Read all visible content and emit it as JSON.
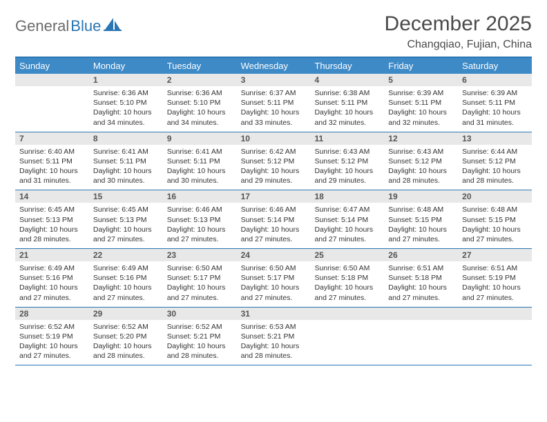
{
  "brand": {
    "part1": "General",
    "part2": "Blue"
  },
  "title": "December 2025",
  "location": "Changqiao, Fujian, China",
  "colors": {
    "header_bg": "#3d8ac7",
    "border": "#2a75b3",
    "daynum_bg": "#e8e8e8",
    "text": "#333333",
    "brand_gray": "#6a6a6a",
    "brand_blue": "#2a75b3"
  },
  "dow": [
    "Sunday",
    "Monday",
    "Tuesday",
    "Wednesday",
    "Thursday",
    "Friday",
    "Saturday"
  ],
  "weeks": [
    [
      {
        "n": "",
        "sr": "",
        "ss": "",
        "dl": ""
      },
      {
        "n": "1",
        "sr": "Sunrise: 6:36 AM",
        "ss": "Sunset: 5:10 PM",
        "dl": "Daylight: 10 hours and 34 minutes."
      },
      {
        "n": "2",
        "sr": "Sunrise: 6:36 AM",
        "ss": "Sunset: 5:10 PM",
        "dl": "Daylight: 10 hours and 34 minutes."
      },
      {
        "n": "3",
        "sr": "Sunrise: 6:37 AM",
        "ss": "Sunset: 5:11 PM",
        "dl": "Daylight: 10 hours and 33 minutes."
      },
      {
        "n": "4",
        "sr": "Sunrise: 6:38 AM",
        "ss": "Sunset: 5:11 PM",
        "dl": "Daylight: 10 hours and 32 minutes."
      },
      {
        "n": "5",
        "sr": "Sunrise: 6:39 AM",
        "ss": "Sunset: 5:11 PM",
        "dl": "Daylight: 10 hours and 32 minutes."
      },
      {
        "n": "6",
        "sr": "Sunrise: 6:39 AM",
        "ss": "Sunset: 5:11 PM",
        "dl": "Daylight: 10 hours and 31 minutes."
      }
    ],
    [
      {
        "n": "7",
        "sr": "Sunrise: 6:40 AM",
        "ss": "Sunset: 5:11 PM",
        "dl": "Daylight: 10 hours and 31 minutes."
      },
      {
        "n": "8",
        "sr": "Sunrise: 6:41 AM",
        "ss": "Sunset: 5:11 PM",
        "dl": "Daylight: 10 hours and 30 minutes."
      },
      {
        "n": "9",
        "sr": "Sunrise: 6:41 AM",
        "ss": "Sunset: 5:11 PM",
        "dl": "Daylight: 10 hours and 30 minutes."
      },
      {
        "n": "10",
        "sr": "Sunrise: 6:42 AM",
        "ss": "Sunset: 5:12 PM",
        "dl": "Daylight: 10 hours and 29 minutes."
      },
      {
        "n": "11",
        "sr": "Sunrise: 6:43 AM",
        "ss": "Sunset: 5:12 PM",
        "dl": "Daylight: 10 hours and 29 minutes."
      },
      {
        "n": "12",
        "sr": "Sunrise: 6:43 AM",
        "ss": "Sunset: 5:12 PM",
        "dl": "Daylight: 10 hours and 28 minutes."
      },
      {
        "n": "13",
        "sr": "Sunrise: 6:44 AM",
        "ss": "Sunset: 5:12 PM",
        "dl": "Daylight: 10 hours and 28 minutes."
      }
    ],
    [
      {
        "n": "14",
        "sr": "Sunrise: 6:45 AM",
        "ss": "Sunset: 5:13 PM",
        "dl": "Daylight: 10 hours and 28 minutes."
      },
      {
        "n": "15",
        "sr": "Sunrise: 6:45 AM",
        "ss": "Sunset: 5:13 PM",
        "dl": "Daylight: 10 hours and 27 minutes."
      },
      {
        "n": "16",
        "sr": "Sunrise: 6:46 AM",
        "ss": "Sunset: 5:13 PM",
        "dl": "Daylight: 10 hours and 27 minutes."
      },
      {
        "n": "17",
        "sr": "Sunrise: 6:46 AM",
        "ss": "Sunset: 5:14 PM",
        "dl": "Daylight: 10 hours and 27 minutes."
      },
      {
        "n": "18",
        "sr": "Sunrise: 6:47 AM",
        "ss": "Sunset: 5:14 PM",
        "dl": "Daylight: 10 hours and 27 minutes."
      },
      {
        "n": "19",
        "sr": "Sunrise: 6:48 AM",
        "ss": "Sunset: 5:15 PM",
        "dl": "Daylight: 10 hours and 27 minutes."
      },
      {
        "n": "20",
        "sr": "Sunrise: 6:48 AM",
        "ss": "Sunset: 5:15 PM",
        "dl": "Daylight: 10 hours and 27 minutes."
      }
    ],
    [
      {
        "n": "21",
        "sr": "Sunrise: 6:49 AM",
        "ss": "Sunset: 5:16 PM",
        "dl": "Daylight: 10 hours and 27 minutes."
      },
      {
        "n": "22",
        "sr": "Sunrise: 6:49 AM",
        "ss": "Sunset: 5:16 PM",
        "dl": "Daylight: 10 hours and 27 minutes."
      },
      {
        "n": "23",
        "sr": "Sunrise: 6:50 AM",
        "ss": "Sunset: 5:17 PM",
        "dl": "Daylight: 10 hours and 27 minutes."
      },
      {
        "n": "24",
        "sr": "Sunrise: 6:50 AM",
        "ss": "Sunset: 5:17 PM",
        "dl": "Daylight: 10 hours and 27 minutes."
      },
      {
        "n": "25",
        "sr": "Sunrise: 6:50 AM",
        "ss": "Sunset: 5:18 PM",
        "dl": "Daylight: 10 hours and 27 minutes."
      },
      {
        "n": "26",
        "sr": "Sunrise: 6:51 AM",
        "ss": "Sunset: 5:18 PM",
        "dl": "Daylight: 10 hours and 27 minutes."
      },
      {
        "n": "27",
        "sr": "Sunrise: 6:51 AM",
        "ss": "Sunset: 5:19 PM",
        "dl": "Daylight: 10 hours and 27 minutes."
      }
    ],
    [
      {
        "n": "28",
        "sr": "Sunrise: 6:52 AM",
        "ss": "Sunset: 5:19 PM",
        "dl": "Daylight: 10 hours and 27 minutes."
      },
      {
        "n": "29",
        "sr": "Sunrise: 6:52 AM",
        "ss": "Sunset: 5:20 PM",
        "dl": "Daylight: 10 hours and 28 minutes."
      },
      {
        "n": "30",
        "sr": "Sunrise: 6:52 AM",
        "ss": "Sunset: 5:21 PM",
        "dl": "Daylight: 10 hours and 28 minutes."
      },
      {
        "n": "31",
        "sr": "Sunrise: 6:53 AM",
        "ss": "Sunset: 5:21 PM",
        "dl": "Daylight: 10 hours and 28 minutes."
      },
      {
        "n": "",
        "sr": "",
        "ss": "",
        "dl": ""
      },
      {
        "n": "",
        "sr": "",
        "ss": "",
        "dl": ""
      },
      {
        "n": "",
        "sr": "",
        "ss": "",
        "dl": ""
      }
    ]
  ]
}
